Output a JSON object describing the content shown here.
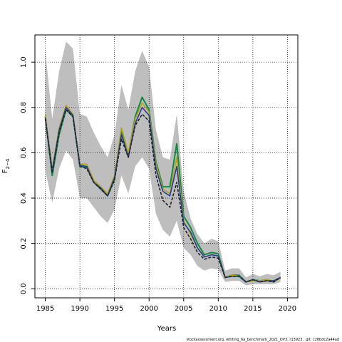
{
  "chart_data": {
    "type": "line",
    "title": "",
    "xlabel": "Years",
    "ylabel": "F",
    "ylabel_sub": "2−4",
    "xlim": [
      1983.5,
      2021.5
    ],
    "ylim": [
      -0.04,
      1.12
    ],
    "xticks": [
      1985,
      1990,
      1995,
      2000,
      2005,
      2010,
      2015,
      2020
    ],
    "yticks": [
      0.0,
      0.2,
      0.4,
      0.6,
      0.8,
      1.0
    ],
    "xtick_labels": [
      "1985",
      "1990",
      "1995",
      "2000",
      "2005",
      "2010",
      "2015",
      "2020"
    ],
    "ytick_labels": [
      "0.0",
      "0.2",
      "0.4",
      "0.6",
      "0.8",
      "1.0"
    ],
    "grid": true,
    "footer": "stockassessment.org, whiting_6a_benchmark_2021_OV3, r13923 , git: c28bdc2a44ad",
    "band": {
      "color": "#bebebe",
      "x": [
        1985,
        1986,
        1987,
        1988,
        1989,
        1990,
        1991,
        1992,
        1993,
        1994,
        1995,
        1996,
        1997,
        1998,
        1999,
        2000,
        2001,
        2002,
        2003,
        2004,
        2005,
        2006,
        2007,
        2008,
        2009,
        2010,
        2011,
        2012,
        2013,
        2014,
        2015,
        2016,
        2017,
        2018,
        2019
      ],
      "upper": [
        1.05,
        0.75,
        0.96,
        1.09,
        1.06,
        0.77,
        0.76,
        0.69,
        0.63,
        0.58,
        0.68,
        0.9,
        0.79,
        0.96,
        1.05,
        0.98,
        0.7,
        0.58,
        0.57,
        0.77,
        0.43,
        0.31,
        0.24,
        0.2,
        0.22,
        0.21,
        0.08,
        0.09,
        0.09,
        0.05,
        0.065,
        0.055,
        0.065,
        0.06,
        0.075
      ],
      "lower": [
        0.52,
        0.38,
        0.53,
        0.61,
        0.57,
        0.4,
        0.4,
        0.36,
        0.32,
        0.29,
        0.35,
        0.5,
        0.42,
        0.54,
        0.58,
        0.53,
        0.33,
        0.26,
        0.23,
        0.3,
        0.18,
        0.15,
        0.1,
        0.08,
        0.09,
        0.085,
        0.03,
        0.035,
        0.035,
        0.015,
        0.02,
        0.02,
        0.02,
        0.02,
        0.03
      ]
    },
    "series": [
      {
        "color": "#0f8a43",
        "dashed": false,
        "width": 2,
        "x": [
          1985,
          1986,
          1987,
          1988,
          1989,
          1990,
          1991,
          1992,
          1993,
          1994,
          1995,
          1996,
          1997,
          1998,
          1999,
          2000,
          2001,
          2002,
          2003,
          2004,
          2005,
          2006,
          2007,
          2008,
          2009,
          2010,
          2011,
          2012,
          2013,
          2014,
          2015,
          2016,
          2017,
          2018,
          2019
        ],
        "values": [
          0.76,
          0.5,
          0.68,
          0.79,
          0.76,
          0.54,
          0.535,
          0.47,
          0.44,
          0.41,
          0.48,
          0.7,
          0.59,
          0.76,
          0.845,
          0.79,
          0.56,
          0.45,
          0.45,
          0.64,
          0.32,
          0.27,
          0.2,
          0.15,
          0.16,
          0.155,
          0.05,
          0.06,
          0.06,
          0.03,
          0.04,
          0.035,
          0.04,
          0.03,
          0.05
        ]
      },
      {
        "color": "#b7a21a",
        "dashed": false,
        "width": 1.6,
        "x": [
          1985,
          1986,
          1987,
          1988,
          1989,
          1990,
          1991,
          1992,
          1993,
          1994,
          1995,
          1996,
          1997,
          1998,
          1999,
          2000,
          2001,
          2002,
          2003,
          2004,
          2005,
          2006,
          2007,
          2008,
          2009,
          2010,
          2011,
          2012,
          2013,
          2014,
          2015,
          2016,
          2017,
          2018,
          2019
        ],
        "values": [
          0.77,
          0.53,
          0.71,
          0.81,
          0.77,
          0.55,
          0.55,
          0.48,
          0.45,
          0.42,
          0.5,
          0.71,
          0.6,
          0.75,
          0.82,
          0.78,
          0.55,
          0.44,
          0.42,
          0.58,
          0.3,
          0.24,
          0.18,
          0.14,
          0.15,
          0.145,
          0.05,
          0.06,
          0.055,
          0.03,
          0.035,
          0.035,
          0.04,
          0.035,
          0.045
        ]
      },
      {
        "color": "#2b3a9a",
        "dashed": false,
        "width": 1.6,
        "x": [
          1985,
          1986,
          1987,
          1988,
          1989,
          1990,
          1991,
          1992,
          1993,
          1994,
          1995,
          1996,
          1997,
          1998,
          1999,
          2000,
          2001,
          2002,
          2003,
          2004,
          2005,
          2006,
          2007,
          2008,
          2009,
          2010,
          2011,
          2012,
          2013,
          2014,
          2015,
          2016,
          2017,
          2018,
          2019
        ],
        "values": [
          0.755,
          0.52,
          0.7,
          0.8,
          0.765,
          0.545,
          0.54,
          0.47,
          0.445,
          0.41,
          0.49,
          0.68,
          0.58,
          0.73,
          0.8,
          0.765,
          0.53,
          0.43,
          0.41,
          0.54,
          0.29,
          0.25,
          0.18,
          0.14,
          0.15,
          0.145,
          0.05,
          0.055,
          0.055,
          0.03,
          0.04,
          0.03,
          0.035,
          0.035,
          0.05
        ]
      },
      {
        "color": "#222222",
        "dashed": true,
        "width": 1.6,
        "x": [
          1985,
          1986,
          1987,
          1988,
          1989,
          1990,
          1991,
          1992,
          1993,
          1994,
          1995,
          1996,
          1997,
          1998,
          1999,
          2000,
          2001,
          2002,
          2003,
          2004,
          2005,
          2006,
          2007,
          2008,
          2009,
          2010,
          2011,
          2012,
          2013,
          2014,
          2015,
          2016,
          2017,
          2018,
          2019
        ],
        "values": [
          0.75,
          0.51,
          0.69,
          0.79,
          0.76,
          0.54,
          0.53,
          0.47,
          0.44,
          0.41,
          0.48,
          0.66,
          0.58,
          0.72,
          0.77,
          0.74,
          0.5,
          0.39,
          0.36,
          0.47,
          0.27,
          0.22,
          0.16,
          0.13,
          0.14,
          0.135,
          0.05,
          0.055,
          0.055,
          0.03,
          0.04,
          0.03,
          0.035,
          0.03,
          0.05
        ]
      }
    ]
  }
}
